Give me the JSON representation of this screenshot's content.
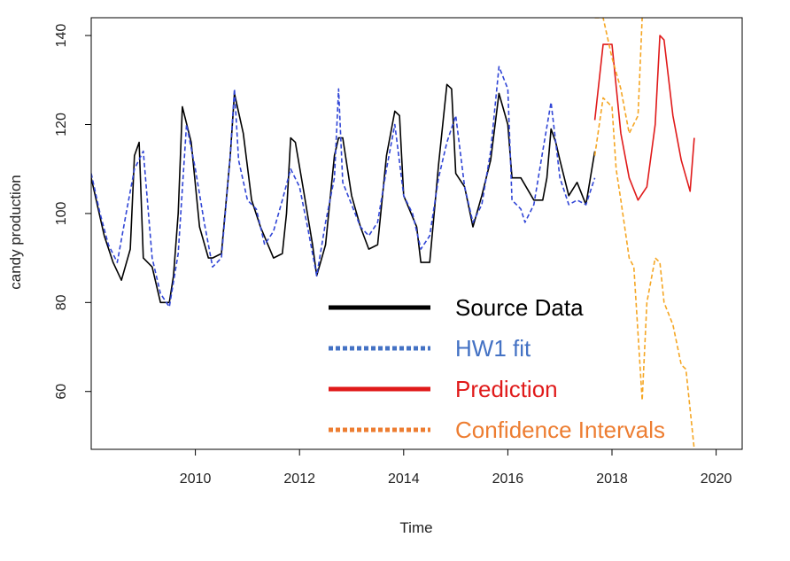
{
  "chart_data": {
    "type": "line",
    "title": "",
    "xlabel": "Time",
    "ylabel": "candy production",
    "xlim": [
      2008.0,
      2020.5
    ],
    "ylim": [
      47,
      144
    ],
    "xticks": [
      2010,
      2012,
      2014,
      2016,
      2018,
      2020
    ],
    "yticks": [
      60,
      80,
      100,
      120,
      140
    ],
    "xtick_labels": [
      "2010",
      "2012",
      "2014",
      "2016",
      "2018",
      "2020"
    ],
    "ytick_labels": [
      "60",
      "80",
      "100",
      "120",
      "140"
    ],
    "grid": false,
    "legend_position": "bottom-center",
    "series": [
      {
        "name": "Source Data",
        "color": "#000000",
        "style": "solid",
        "x": [
          2008.0,
          2008.25,
          2008.42,
          2008.58,
          2008.75,
          2008.83,
          2008.92,
          2009.0,
          2009.17,
          2009.33,
          2009.5,
          2009.58,
          2009.67,
          2009.75,
          2009.92,
          2010.08,
          2010.25,
          2010.33,
          2010.5,
          2010.67,
          2010.75,
          2010.92,
          2011.08,
          2011.25,
          2011.5,
          2011.67,
          2011.75,
          2011.83,
          2011.92,
          2012.08,
          2012.25,
          2012.33,
          2012.5,
          2012.67,
          2012.75,
          2012.83,
          2013.0,
          2013.17,
          2013.33,
          2013.5,
          2013.67,
          2013.83,
          2013.92,
          2014.0,
          2014.25,
          2014.33,
          2014.5,
          2014.67,
          2014.83,
          2014.92,
          2015.0,
          2015.17,
          2015.33,
          2015.5,
          2015.67,
          2015.83,
          2016.0,
          2016.08,
          2016.25,
          2016.5,
          2016.67,
          2016.75,
          2016.83,
          2016.92,
          2017.0,
          2017.17,
          2017.33,
          2017.5,
          2017.67
        ],
        "y": [
          108,
          95,
          89,
          85,
          92,
          113,
          116,
          90,
          88,
          80,
          80,
          86,
          100,
          124,
          116,
          97,
          90,
          90,
          91,
          113,
          127,
          118,
          103,
          97,
          90,
          91,
          100,
          117,
          116,
          105,
          93,
          86,
          93,
          113,
          117,
          117,
          104,
          97,
          92,
          93,
          113,
          123,
          122,
          104,
          97,
          89,
          89,
          111,
          129,
          128,
          109,
          106,
          97,
          104,
          112,
          127,
          120,
          108,
          108,
          103,
          103,
          108,
          119,
          116,
          112,
          104,
          107,
          102,
          114
        ]
      },
      {
        "name": "HW1 fit",
        "color": "#3146d6",
        "style": "dashed",
        "x": [
          2008.0,
          2008.17,
          2008.33,
          2008.5,
          2008.67,
          2008.83,
          2009.0,
          2009.17,
          2009.33,
          2009.5,
          2009.67,
          2009.83,
          2010.0,
          2010.17,
          2010.33,
          2010.5,
          2010.67,
          2010.75,
          2010.83,
          2011.0,
          2011.17,
          2011.33,
          2011.5,
          2011.67,
          2011.83,
          2012.0,
          2012.17,
          2012.33,
          2012.5,
          2012.67,
          2012.75,
          2012.83,
          2013.0,
          2013.17,
          2013.33,
          2013.5,
          2013.67,
          2013.83,
          2014.0,
          2014.17,
          2014.33,
          2014.5,
          2014.67,
          2014.83,
          2015.0,
          2015.17,
          2015.33,
          2015.5,
          2015.67,
          2015.83,
          2016.0,
          2016.08,
          2016.25,
          2016.33,
          2016.5,
          2016.67,
          2016.83,
          2017.0,
          2017.17,
          2017.33,
          2017.5,
          2017.67
        ],
        "y": [
          109,
          100,
          93,
          89,
          100,
          110,
          114,
          90,
          82,
          79,
          91,
          120,
          110,
          98,
          88,
          90,
          113,
          128,
          112,
          103,
          101,
          93,
          96,
          103,
          110,
          106,
          96,
          86,
          98,
          108,
          128,
          107,
          102,
          97,
          95,
          98,
          110,
          120,
          104,
          100,
          92,
          95,
          108,
          116,
          122,
          106,
          98,
          102,
          114,
          133,
          128,
          103,
          101,
          98,
          102,
          114,
          125,
          108,
          102,
          103,
          102,
          108
        ]
      },
      {
        "name": "Prediction",
        "color": "#e01a1a",
        "style": "solid",
        "x": [
          2017.67,
          2017.83,
          2018.0,
          2018.17,
          2018.33,
          2018.5,
          2018.67,
          2018.83,
          2018.92,
          2019.0,
          2019.17,
          2019.33,
          2019.5,
          2019.58
        ],
        "y": [
          121,
          138,
          138,
          118,
          108,
          103,
          106,
          120,
          140,
          139,
          122,
          112,
          105,
          117
        ]
      },
      {
        "name": "Confidence Intervals",
        "color": "#f5a623",
        "style": "dashed",
        "upper_x": [
          2017.67,
          2017.75,
          2017.83,
          2018.0,
          2018.17,
          2018.33,
          2018.5,
          2018.58
        ],
        "upper_y": [
          144,
          144,
          144,
          135,
          128,
          118,
          122,
          144
        ],
        "lower_x": [
          2017.67,
          2017.83,
          2018.0,
          2018.08,
          2018.17,
          2018.33,
          2018.42,
          2018.58,
          2018.67,
          2018.83,
          2018.92,
          2019.0,
          2019.17,
          2019.33,
          2019.42,
          2019.58
        ],
        "lower_y": [
          113,
          126,
          124,
          110,
          103,
          90,
          88,
          58,
          80,
          90,
          89,
          80,
          75,
          66,
          65,
          47
        ]
      }
    ]
  }
}
